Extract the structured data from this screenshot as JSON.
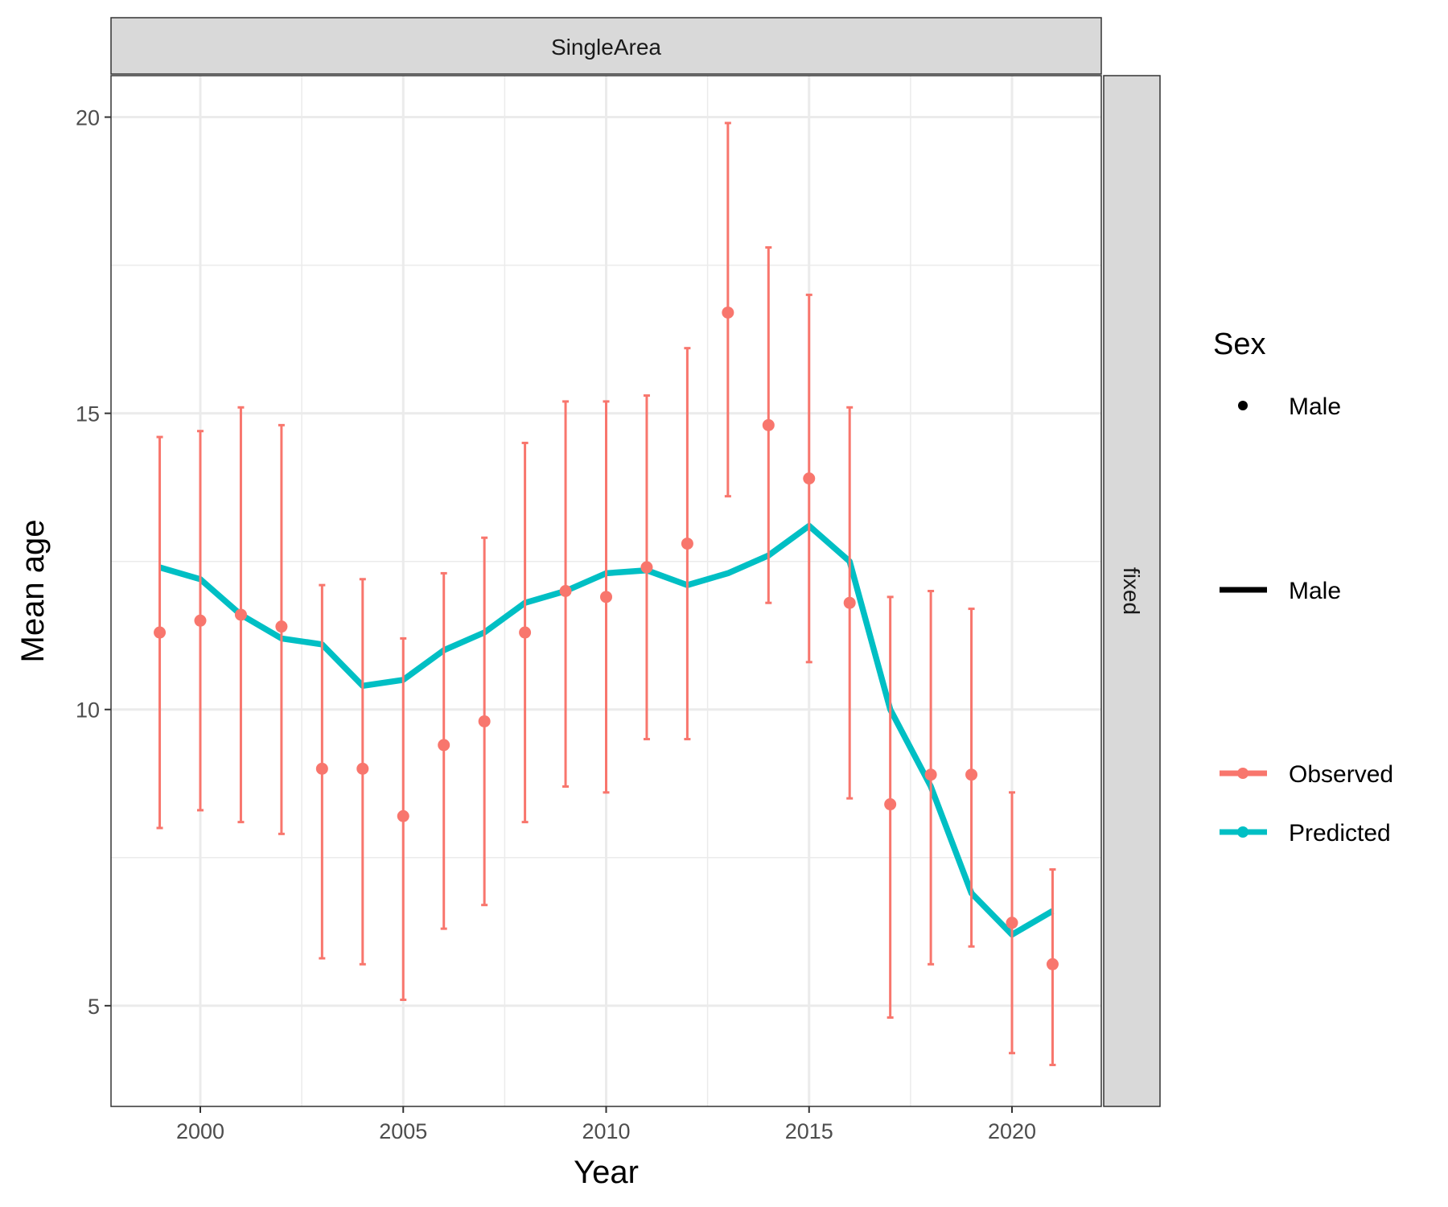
{
  "chart_data": {
    "type": "line",
    "facet_top": "SingleArea",
    "facet_right": "fixed",
    "xlabel": "Year",
    "ylabel": "Mean age",
    "xlim": [
      1997.8,
      2022.2
    ],
    "ylim": [
      3.3,
      20.7
    ],
    "x_ticks": [
      2000,
      2005,
      2010,
      2015,
      2020
    ],
    "y_ticks": [
      5,
      10,
      15,
      20
    ],
    "x_tick_labels": [
      "2000",
      "2005",
      "2010",
      "2015",
      "2020"
    ],
    "y_tick_labels": [
      "5",
      "10",
      "15",
      "20"
    ],
    "grid": true,
    "legend": {
      "title": "Sex",
      "position": "right",
      "point_label": "Male",
      "line_label": "Male",
      "observed_label": "Observed",
      "predicted_label": "Predicted"
    },
    "colors": {
      "observed": "#F8766D",
      "predicted": "#00BFC4"
    },
    "series": [
      {
        "name": "Observed",
        "x": [
          1999,
          2000,
          2001,
          2002,
          2003,
          2004,
          2005,
          2006,
          2007,
          2008,
          2009,
          2010,
          2011,
          2012,
          2013,
          2014,
          2015,
          2016,
          2017,
          2018,
          2019,
          2020,
          2021
        ],
        "y": [
          11.3,
          11.5,
          11.6,
          11.4,
          9.0,
          9.0,
          8.2,
          9.4,
          9.8,
          11.3,
          12.0,
          11.9,
          12.4,
          12.8,
          16.7,
          14.8,
          13.9,
          11.8,
          8.4,
          8.9,
          8.9,
          6.4,
          5.7
        ],
        "lower": [
          8.0,
          8.3,
          8.1,
          7.9,
          5.8,
          5.7,
          5.1,
          6.3,
          6.7,
          8.1,
          8.7,
          8.6,
          9.5,
          9.5,
          13.6,
          11.8,
          10.8,
          8.5,
          4.8,
          5.7,
          6.0,
          4.2,
          4.0
        ],
        "upper": [
          14.6,
          14.7,
          15.1,
          14.8,
          12.1,
          12.2,
          11.2,
          12.3,
          12.9,
          14.5,
          15.2,
          15.2,
          15.3,
          16.1,
          19.9,
          17.8,
          17.0,
          15.1,
          11.9,
          12.0,
          11.7,
          8.6,
          7.3
        ]
      },
      {
        "name": "Predicted",
        "x": [
          1999,
          2000,
          2001,
          2002,
          2003,
          2004,
          2005,
          2006,
          2007,
          2008,
          2009,
          2010,
          2011,
          2012,
          2013,
          2014,
          2015,
          2016,
          2017,
          2018,
          2019,
          2020,
          2021
        ],
        "y": [
          12.4,
          12.2,
          11.6,
          11.2,
          11.1,
          10.4,
          10.5,
          11.0,
          11.3,
          11.8,
          12.0,
          12.3,
          12.35,
          12.1,
          12.3,
          12.6,
          13.1,
          12.5,
          10.0,
          8.7,
          6.9,
          6.2,
          6.6
        ]
      }
    ]
  }
}
